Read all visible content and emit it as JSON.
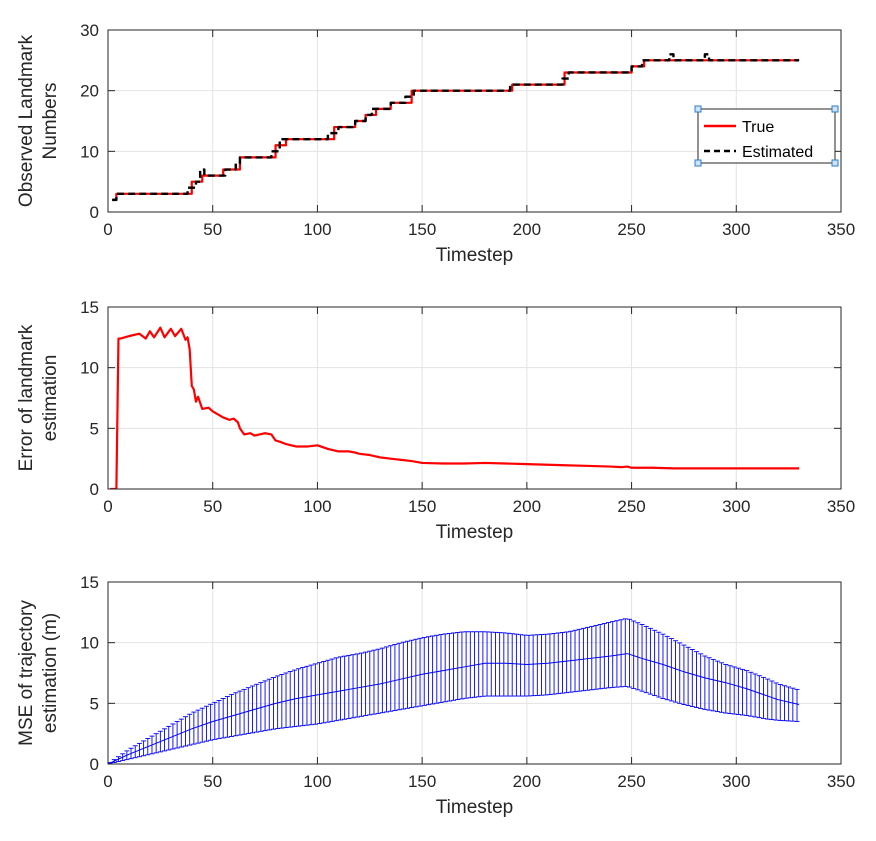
{
  "chart_data": [
    {
      "type": "line",
      "xlabel": "Timestep",
      "ylabel": [
        "Observed Landmark",
        "Numbers"
      ],
      "xlim": [
        0,
        350
      ],
      "ylim": [
        0,
        30
      ],
      "xticks": [
        0,
        50,
        100,
        150,
        200,
        250,
        300,
        350
      ],
      "yticks": [
        0,
        10,
        20,
        30
      ],
      "grid": true,
      "legend": {
        "placement": "right",
        "entries": [
          "True",
          "Estimated"
        ]
      },
      "series": [
        {
          "name": "True",
          "style": "solid",
          "color": "#ff0000",
          "steps": [
            [
              2,
              2
            ],
            [
              4,
              3
            ],
            [
              40,
              5
            ],
            [
              45,
              6
            ],
            [
              55,
              7
            ],
            [
              63,
              9
            ],
            [
              80,
              11
            ],
            [
              85,
              12
            ],
            [
              100,
              12
            ],
            [
              108,
              14
            ],
            [
              118,
              15
            ],
            [
              123,
              16
            ],
            [
              128,
              17
            ],
            [
              135,
              18
            ],
            [
              145,
              20
            ],
            [
              193,
              21
            ],
            [
              205,
              21
            ],
            [
              218,
              23
            ],
            [
              240,
              23
            ],
            [
              250,
              24
            ],
            [
              256,
              25
            ],
            [
              330,
              25
            ]
          ]
        },
        {
          "name": "Estimated",
          "style": "dashed",
          "color": "#000000",
          "steps": [
            [
              2,
              2
            ],
            [
              4,
              3
            ],
            [
              38,
              4
            ],
            [
              42,
              5
            ],
            [
              44,
              7
            ],
            [
              46,
              6
            ],
            [
              56,
              7
            ],
            [
              61,
              8
            ],
            [
              63,
              9
            ],
            [
              78,
              10
            ],
            [
              82,
              12
            ],
            [
              86,
              12
            ],
            [
              105,
              13
            ],
            [
              110,
              14
            ],
            [
              118,
              15
            ],
            [
              123,
              16
            ],
            [
              126,
              17
            ],
            [
              135,
              18
            ],
            [
              142,
              19
            ],
            [
              146,
              20
            ],
            [
              150,
              20
            ],
            [
              192,
              21
            ],
            [
              205,
              21
            ],
            [
              217,
              22
            ],
            [
              220,
              23
            ],
            [
              240,
              23
            ],
            [
              250,
              24
            ],
            [
              255,
              25
            ],
            [
              268,
              26
            ],
            [
              270,
              25
            ],
            [
              285,
              26
            ],
            [
              287,
              25
            ],
            [
              330,
              25
            ]
          ]
        }
      ]
    },
    {
      "type": "line",
      "xlabel": "Timestep",
      "ylabel": [
        "Error of landmark",
        "estimation"
      ],
      "xlim": [
        0,
        350
      ],
      "ylim": [
        0,
        15
      ],
      "xticks": [
        0,
        50,
        100,
        150,
        200,
        250,
        300,
        350
      ],
      "yticks": [
        0,
        5,
        10,
        15
      ],
      "grid": true,
      "series": [
        {
          "color": "#ff0000",
          "x": [
            1,
            3,
            4,
            5,
            6,
            10,
            15,
            18,
            20,
            22,
            25,
            27,
            30,
            32,
            35,
            37,
            38,
            39,
            40,
            41,
            42,
            43,
            45,
            48,
            50,
            52,
            55,
            58,
            60,
            62,
            63,
            65,
            68,
            70,
            75,
            78,
            80,
            82,
            85,
            90,
            95,
            100,
            105,
            110,
            115,
            118,
            120,
            125,
            130,
            135,
            140,
            145,
            150,
            160,
            170,
            180,
            190,
            200,
            210,
            220,
            230,
            240,
            245,
            248,
            250,
            255,
            260,
            270,
            280,
            290,
            300,
            310,
            320,
            330
          ],
          "y": [
            0,
            0,
            0,
            12.4,
            12.4,
            12.6,
            12.8,
            12.4,
            13.0,
            12.5,
            13.3,
            12.5,
            13.2,
            12.6,
            13.2,
            12.3,
            12.5,
            11.5,
            8.5,
            8.2,
            7.2,
            7.6,
            6.6,
            6.7,
            6.4,
            6.2,
            5.9,
            5.7,
            5.8,
            5.5,
            5.0,
            4.5,
            4.6,
            4.4,
            4.6,
            4.5,
            4.0,
            3.9,
            3.7,
            3.5,
            3.5,
            3.6,
            3.3,
            3.1,
            3.1,
            3.0,
            2.9,
            2.8,
            2.6,
            2.5,
            2.4,
            2.3,
            2.15,
            2.1,
            2.1,
            2.15,
            2.1,
            2.05,
            2.0,
            1.95,
            1.9,
            1.85,
            1.8,
            1.85,
            1.75,
            1.75,
            1.75,
            1.7,
            1.7,
            1.7,
            1.7,
            1.7,
            1.7,
            1.7
          ]
        }
      ]
    },
    {
      "type": "errorbar",
      "xlabel": "Timestep",
      "ylabel": [
        "MSE of trajectory",
        "estimation (m)"
      ],
      "xlim": [
        0,
        350
      ],
      "ylim": [
        0,
        15
      ],
      "xticks": [
        0,
        50,
        100,
        150,
        200,
        250,
        300,
        350
      ],
      "yticks": [
        0,
        5,
        10,
        15
      ],
      "grid": true,
      "series": [
        {
          "color": "#0000ff",
          "x": [
            0,
            10,
            20,
            30,
            40,
            50,
            60,
            70,
            80,
            90,
            100,
            110,
            120,
            130,
            140,
            150,
            160,
            170,
            180,
            190,
            200,
            210,
            220,
            230,
            240,
            248,
            255,
            265,
            275,
            285,
            295,
            305,
            315,
            320,
            330
          ],
          "mean": [
            0,
            0.8,
            1.5,
            2.2,
            2.9,
            3.5,
            4.0,
            4.5,
            5.0,
            5.4,
            5.7,
            6.0,
            6.3,
            6.6,
            7.0,
            7.4,
            7.7,
            8.0,
            8.3,
            8.3,
            8.2,
            8.3,
            8.5,
            8.7,
            8.9,
            9.1,
            8.7,
            8.2,
            7.6,
            7.1,
            6.7,
            6.2,
            5.6,
            5.3,
            4.9
          ],
          "lower": [
            0,
            0.4,
            0.8,
            1.2,
            1.6,
            2.0,
            2.3,
            2.6,
            2.9,
            3.1,
            3.3,
            3.6,
            3.9,
            4.2,
            4.5,
            4.8,
            5.1,
            5.4,
            5.6,
            5.6,
            5.6,
            5.7,
            5.9,
            6.1,
            6.3,
            6.4,
            6.0,
            5.4,
            4.9,
            4.5,
            4.2,
            4.0,
            3.7,
            3.6,
            3.5
          ],
          "upper": [
            0,
            1.2,
            2.2,
            3.2,
            4.2,
            5.0,
            5.8,
            6.5,
            7.2,
            7.8,
            8.3,
            8.8,
            9.1,
            9.5,
            10.0,
            10.4,
            10.7,
            10.9,
            10.9,
            10.8,
            10.6,
            10.7,
            10.9,
            11.3,
            11.7,
            12.0,
            11.5,
            10.7,
            9.8,
            8.9,
            8.2,
            7.7,
            7.0,
            6.6,
            6.1
          ]
        }
      ]
    }
  ]
}
